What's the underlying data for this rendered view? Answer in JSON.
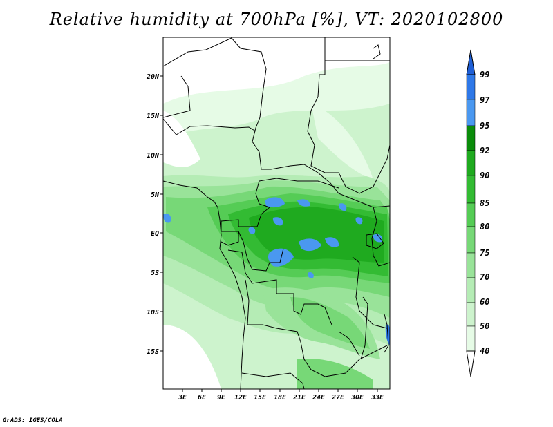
{
  "title": "Relative humidity at 700hPa [%], VT: 2020102800",
  "credit": "GrADS: IGES/COLA",
  "map": {
    "lat_labels": [
      "20N",
      "15N",
      "10N",
      "5N",
      "EQ",
      "5S",
      "10S",
      "15S"
    ],
    "lon_labels": [
      "3E",
      "6E",
      "9E",
      "12E",
      "15E",
      "18E",
      "21E",
      "24E",
      "27E",
      "30E",
      "33E"
    ],
    "field_variable": "relative humidity",
    "level": "700hPa",
    "units": "%"
  },
  "colorbar": {
    "labels": [
      "99",
      "97",
      "95",
      "92",
      "90",
      "85",
      "80",
      "75",
      "70",
      "60",
      "50",
      "40"
    ],
    "colors": [
      "#1f5fd6",
      "#2e78e8",
      "#4a98f0",
      "#0a8c0a",
      "#1faa1f",
      "#33bb33",
      "#55cc55",
      "#77d877",
      "#99e399",
      "#b5ecb5",
      "#cdf3cd",
      "#e6fbe6",
      "#ffffff"
    ]
  }
}
